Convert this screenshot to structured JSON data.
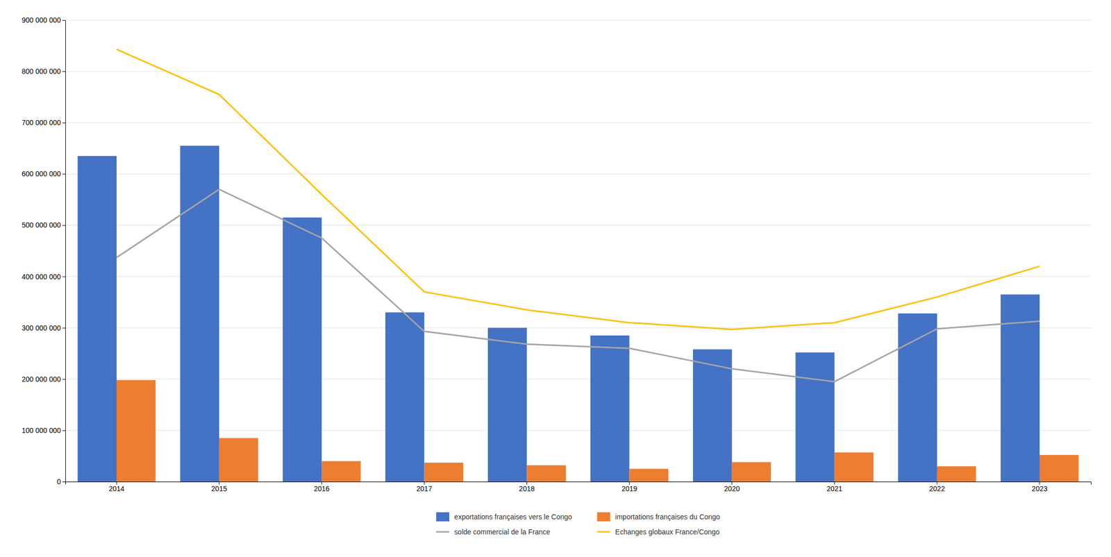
{
  "chart_data": {
    "type": "bar",
    "categories": [
      "2014",
      "2015",
      "2016",
      "2017",
      "2018",
      "2019",
      "2020",
      "2021",
      "2022",
      "2023"
    ],
    "series": [
      {
        "name": "exportations françaises vers le Congo",
        "type": "bar",
        "color": "#4472C4",
        "values": [
          635000000,
          655000000,
          515000000,
          330000000,
          300000000,
          285000000,
          258000000,
          252000000,
          328000000,
          365000000
        ]
      },
      {
        "name": "importations françaises du Congo",
        "type": "bar",
        "color": "#ED7D31",
        "values": [
          198000000,
          85000000,
          40000000,
          37000000,
          32000000,
          25000000,
          38000000,
          57000000,
          30000000,
          52000000
        ]
      },
      {
        "name": "solde commercial de la France",
        "type": "line",
        "color": "#A5A5A5",
        "values": [
          437000000,
          570000000,
          475000000,
          293000000,
          268000000,
          260000000,
          220000000,
          195000000,
          298000000,
          313000000
        ]
      },
      {
        "name": "Echanges globaux France/Congo",
        "type": "line",
        "color": "#FFC000",
        "values": [
          843000000,
          755000000,
          560000000,
          370000000,
          335000000,
          310000000,
          297000000,
          310000000,
          360000000,
          420000000
        ]
      }
    ],
    "ylim": [
      0,
      900000000
    ],
    "yticks": [
      0,
      {
        "value": 100000000,
        "label": "100 000 000"
      },
      {
        "value": 200000000,
        "label": "200 000 000"
      },
      {
        "value": 300000000,
        "label": "300 000 000"
      },
      {
        "value": 400000000,
        "label": "400 000 000"
      },
      {
        "value": 500000000,
        "label": "500 000 000"
      },
      {
        "value": 600000000,
        "label": "600 000 000"
      },
      {
        "value": 700000000,
        "label": "700 000 000"
      },
      {
        "value": 800000000,
        "label": "800 000 000"
      },
      {
        "value": 900000000,
        "label": "900 000 000"
      }
    ],
    "grid": true,
    "legend": "bottom"
  }
}
